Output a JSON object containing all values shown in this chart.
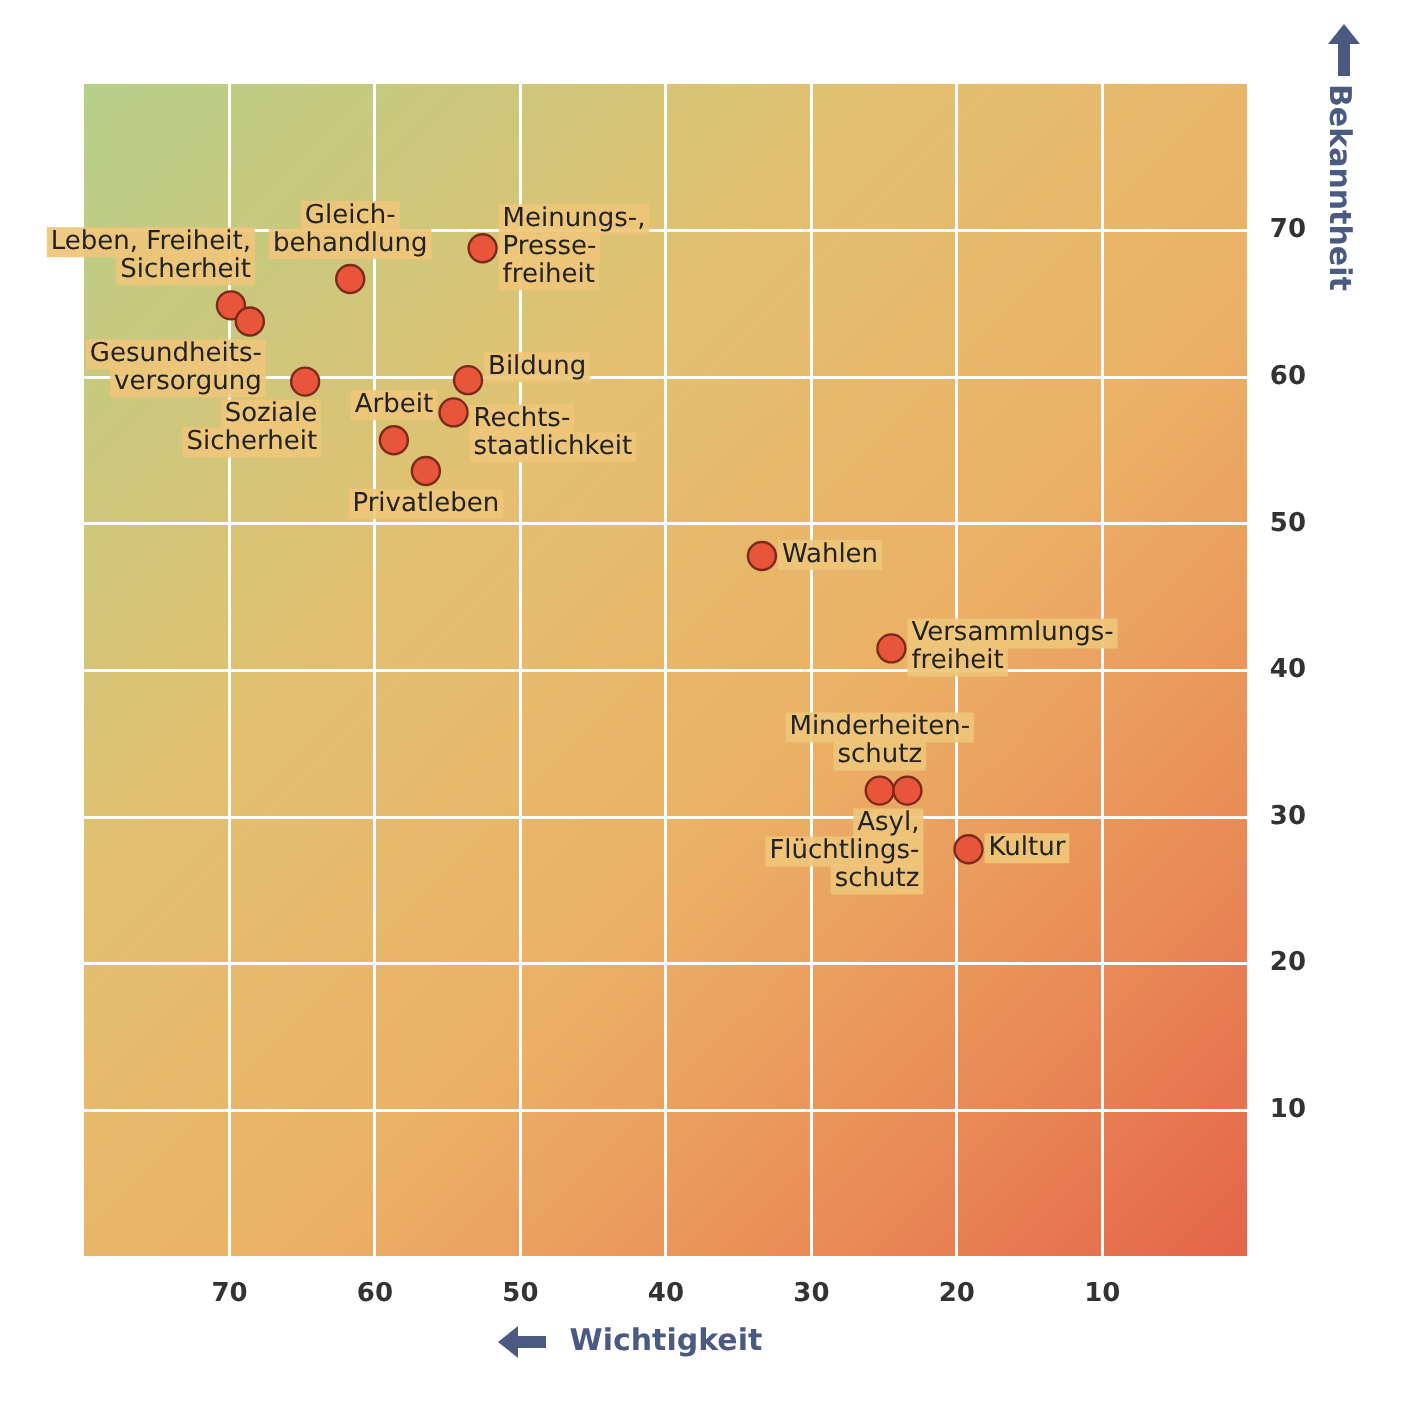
{
  "chart_data": {
    "type": "scatter",
    "xlabel": "Wichtigkeit",
    "ylabel": "Bekanntheit",
    "x": [
      69.9,
      68.6,
      64.8,
      61.7,
      52.6,
      58.7,
      56.5,
      53.6,
      54.6,
      33.4,
      24.5,
      25.3,
      23.4,
      19.2
    ],
    "values": [
      64.9,
      63.8,
      59.7,
      66.7,
      68.8,
      55.7,
      53.6,
      59.8,
      57.6,
      47.8,
      41.5,
      31.8,
      31.8,
      27.8
    ],
    "color": "#e8553a",
    "marker": "circle",
    "xlim": [
      80,
      0
    ],
    "ylim": [
      0,
      80
    ],
    "xticks": [
      10,
      20,
      30,
      40,
      50,
      60,
      70
    ],
    "yticks": [
      10,
      20,
      30,
      40,
      50,
      60,
      70
    ],
    "grid": true,
    "legend": false,
    "annotations": [
      {
        "text": "Leben, Freiheit,\nSicherheit",
        "x": 69.9,
        "y": 64.9
      },
      {
        "text": "Gesundheits-\nversorgung",
        "x": 68.6,
        "y": 63.8
      },
      {
        "text": "Soziale\nSicherheit",
        "x": 64.8,
        "y": 59.7
      },
      {
        "text": "Gleich-\nbehandlung",
        "x": 61.7,
        "y": 66.7
      },
      {
        "text": "Meinungs-,\nPresse-\nfreiheit",
        "x": 52.6,
        "y": 68.8
      },
      {
        "text": "Arbeit",
        "x": 58.7,
        "y": 55.7
      },
      {
        "text": "Privatleben",
        "x": 56.5,
        "y": 53.6
      },
      {
        "text": "Bildung",
        "x": 53.6,
        "y": 59.8
      },
      {
        "text": "Rechts-\nstaatlichkeit",
        "x": 54.6,
        "y": 57.6
      },
      {
        "text": "Wahlen",
        "x": 33.4,
        "y": 47.8
      },
      {
        "text": "Versammlungs-\nfreiheit",
        "x": 24.5,
        "y": 41.5
      },
      {
        "text": "Minderheiten-\nschutz",
        "x": 25.3,
        "y": 31.8
      },
      {
        "text": "Asyl,\nFlüchtlings-\nschutz",
        "x": 23.4,
        "y": 31.8
      },
      {
        "text": "Kultur",
        "x": 19.2,
        "y": 27.8
      }
    ]
  }
}
